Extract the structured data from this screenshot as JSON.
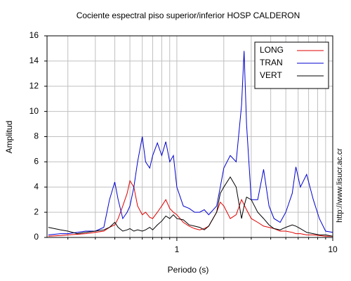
{
  "chart_data": {
    "type": "line",
    "title": "Cociente espectral piso superior/inferior  HOSP CALDERON",
    "x_label": "Periodo (s)",
    "y_label": "Amplitud",
    "side_note": "http://www.lisucr.ac.cr",
    "x_log": true,
    "grid": true,
    "legend": "top-right",
    "xlim": [
      0.147,
      10
    ],
    "ylim": [
      0,
      16
    ],
    "xticks": [
      1,
      10
    ],
    "xminor": [
      0.2,
      0.3,
      0.4,
      0.5,
      0.6,
      0.7,
      0.8,
      0.9,
      2,
      3,
      4,
      5,
      6,
      7,
      8,
      9
    ],
    "yticks": [
      0,
      2,
      4,
      6,
      8,
      10,
      12,
      14,
      16
    ],
    "x": [
      0.15,
      0.18,
      0.2,
      0.23,
      0.26,
      0.3,
      0.34,
      0.37,
      0.4,
      0.42,
      0.45,
      0.48,
      0.5,
      0.53,
      0.56,
      0.6,
      0.63,
      0.67,
      0.7,
      0.75,
      0.8,
      0.85,
      0.9,
      0.95,
      1.0,
      1.1,
      1.2,
      1.3,
      1.4,
      1.5,
      1.6,
      1.8,
      1.9,
      2.0,
      2.2,
      2.4,
      2.6,
      2.7,
      2.8,
      3.0,
      3.3,
      3.6,
      3.9,
      4.2,
      4.6,
      5.0,
      5.5,
      5.8,
      6.2,
      6.8,
      7.5,
      8.2,
      9,
      10
    ],
    "series": [
      {
        "name": "LONG",
        "color": "#e00000",
        "values": [
          0.1,
          0.15,
          0.2,
          0.25,
          0.3,
          0.4,
          0.5,
          0.8,
          1.0,
          1.5,
          2.5,
          3.5,
          4.5,
          4.0,
          2.5,
          1.8,
          2.0,
          1.6,
          1.5,
          2.0,
          2.5,
          3.0,
          2.3,
          2.0,
          1.8,
          1.2,
          0.9,
          0.7,
          0.6,
          0.7,
          0.9,
          2.0,
          2.8,
          2.5,
          1.5,
          1.8,
          3.0,
          2.6,
          2.2,
          1.5,
          1.2,
          0.9,
          0.8,
          0.7,
          0.5,
          0.5,
          0.4,
          0.3,
          0.3,
          0.2,
          0.2,
          0.15,
          0.1,
          0.1
        ]
      },
      {
        "name": "TRAN",
        "color": "#0000d0",
        "values": [
          0.2,
          0.3,
          0.3,
          0.4,
          0.5,
          0.5,
          0.8,
          3.0,
          4.4,
          3.0,
          1.5,
          2.0,
          2.5,
          4.0,
          6.0,
          8.0,
          6.0,
          5.5,
          6.5,
          7.5,
          6.5,
          7.6,
          6,
          6.5,
          4,
          2.5,
          2.3,
          2,
          2,
          2.2,
          1.8,
          2.5,
          4,
          5.5,
          6.5,
          6,
          10.5,
          14.8,
          9,
          3,
          3,
          5.4,
          2.5,
          1.5,
          1.2,
          2,
          3.5,
          5.6,
          4,
          5,
          3,
          1.5,
          0.5,
          0.4
        ]
      },
      {
        "name": "VERT",
        "color": "#000000",
        "values": [
          0.8,
          0.6,
          0.5,
          0.3,
          0.4,
          0.5,
          0.6,
          0.8,
          1.2,
          0.8,
          0.5,
          0.6,
          0.7,
          0.5,
          0.6,
          0.5,
          0.6,
          0.8,
          0.6,
          1.0,
          1.3,
          1.7,
          1.5,
          1.8,
          1.5,
          1.4,
          1.0,
          0.9,
          0.8,
          0.6,
          0.9,
          2.0,
          3.5,
          4.0,
          4.8,
          4.0,
          1.5,
          2.5,
          3.2,
          3.0,
          2.0,
          1.5,
          1.0,
          0.7,
          0.6,
          0.8,
          1.0,
          0.9,
          0.7,
          0.4,
          0.3,
          0.2,
          0.2,
          0.1
        ]
      }
    ]
  }
}
